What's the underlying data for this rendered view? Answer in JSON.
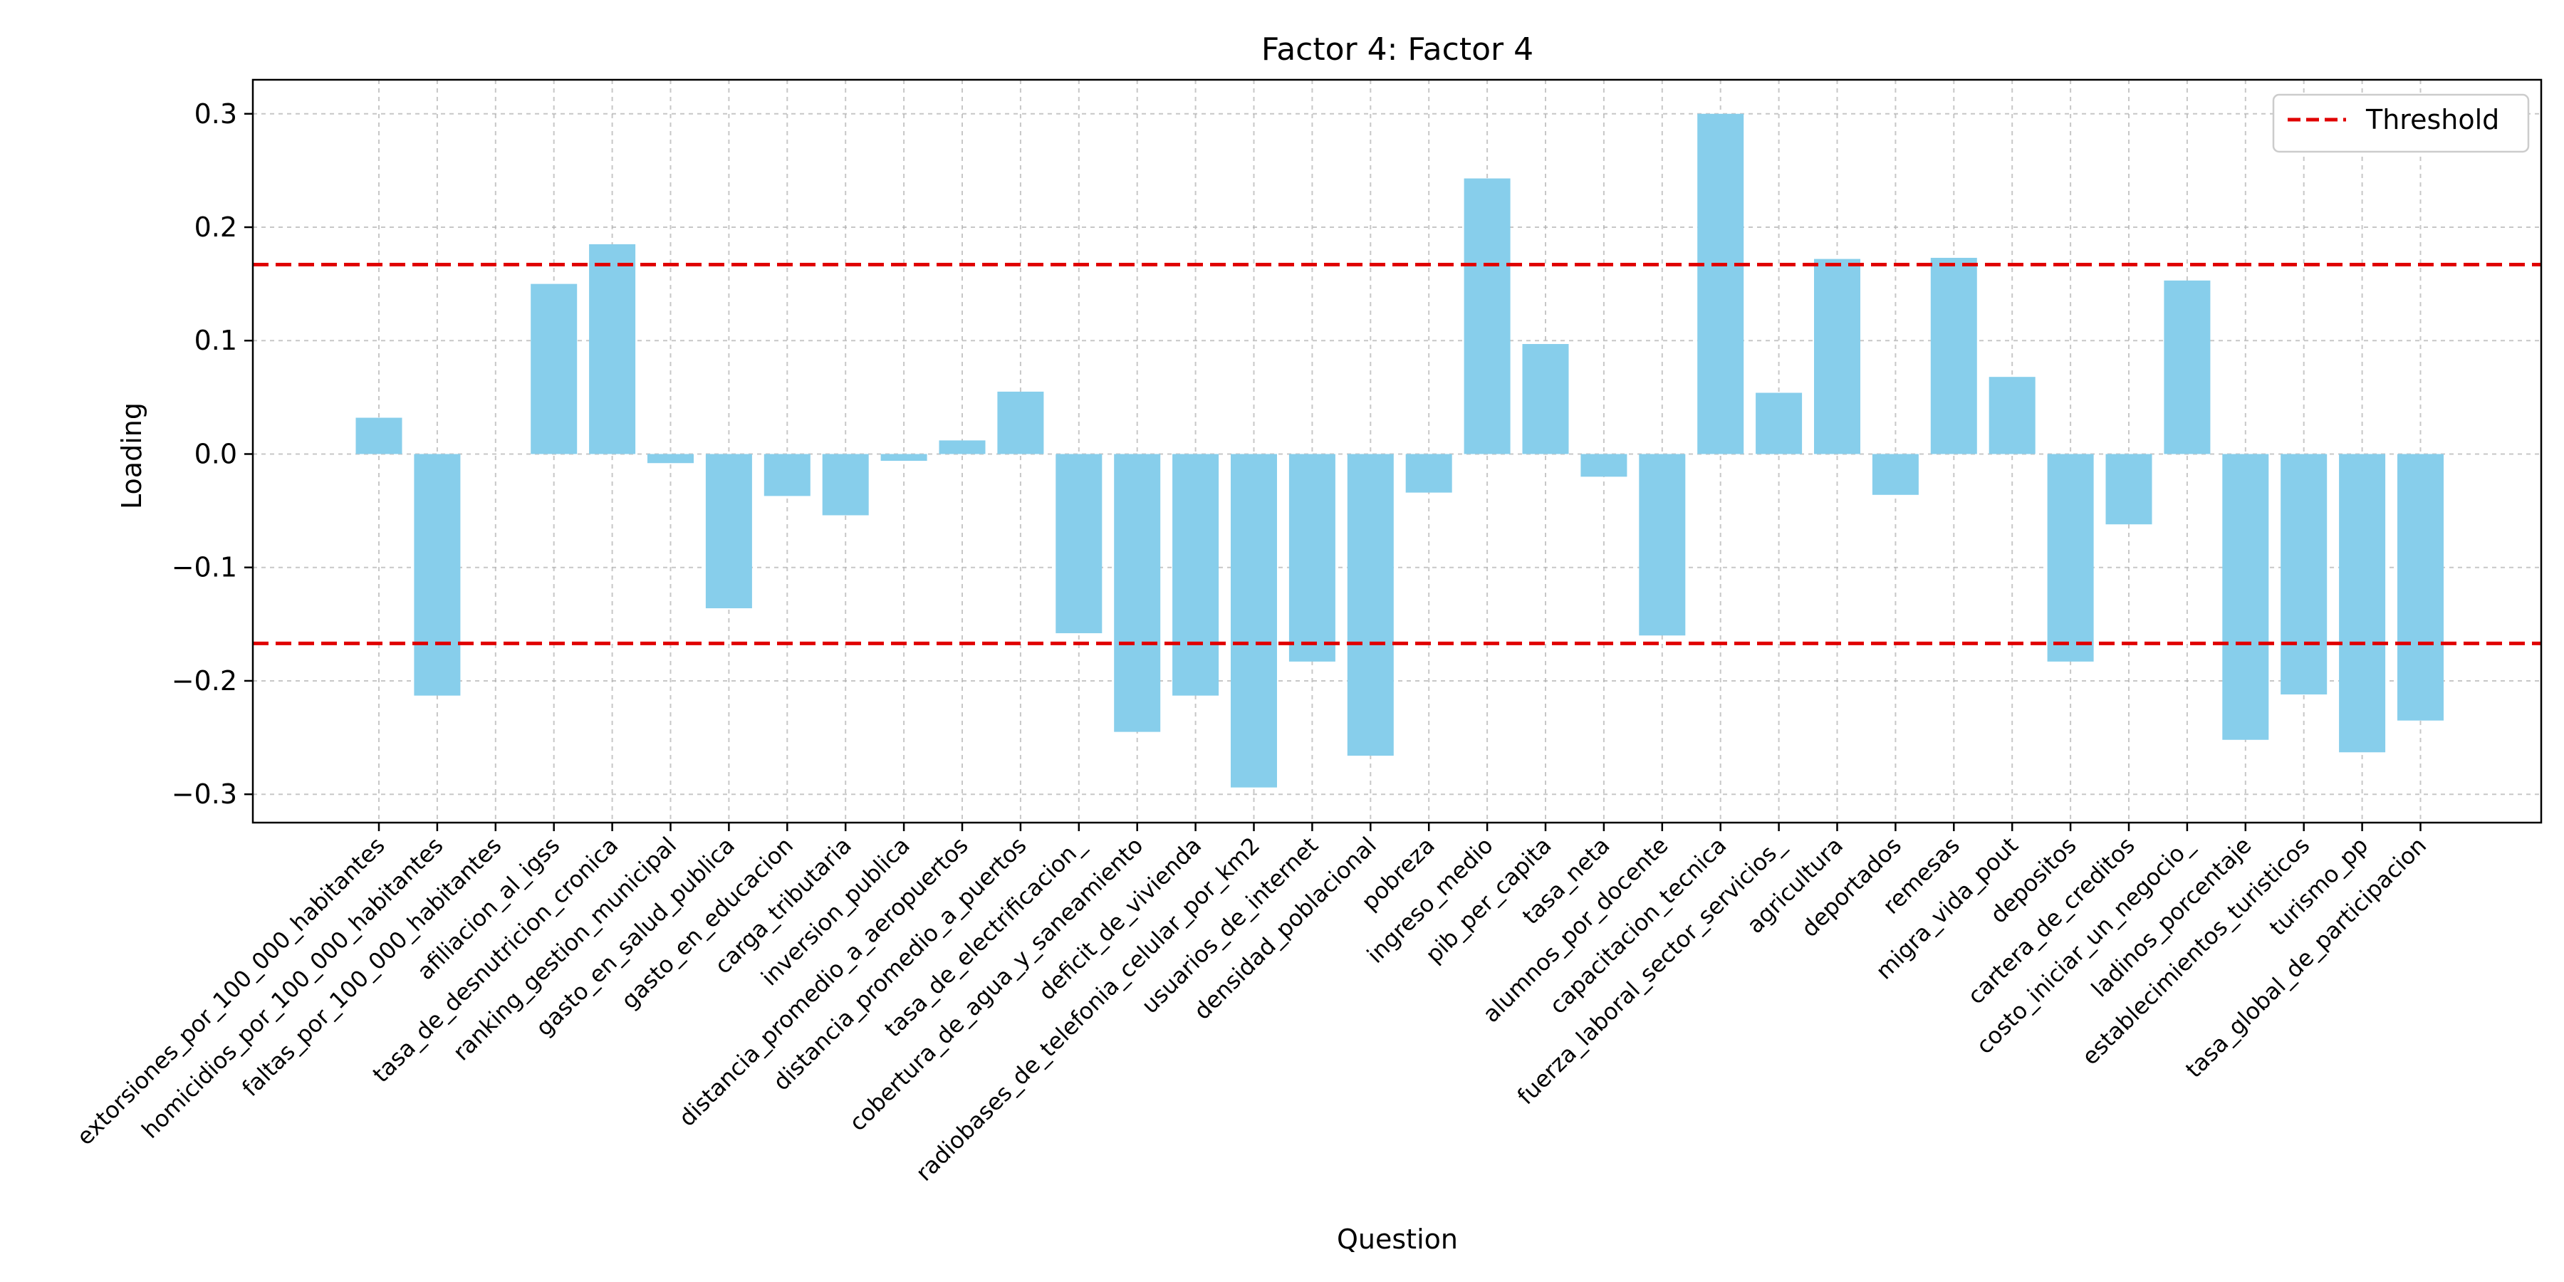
{
  "chart_data": {
    "type": "bar",
    "title": "Factor 4: Factor 4",
    "xlabel": "Question",
    "ylabel": "Loading",
    "ylim": [
      -0.325,
      0.33
    ],
    "yticks": [
      -0.3,
      -0.2,
      -0.1,
      0.0,
      0.1,
      0.2,
      0.3
    ],
    "ytick_labels": [
      "−0.3",
      "−0.2",
      "−0.1",
      "0.0",
      "0.1",
      "0.2",
      "0.3"
    ],
    "grid": true,
    "legend": {
      "position": "top-right",
      "entries": [
        {
          "label": "Threshold",
          "color": "#e00000",
          "style": "dashed"
        }
      ]
    },
    "threshold": 0.167,
    "bar_color": "#87ceeb",
    "categories": [
      "extorsiones_por_100_000_habitantes",
      "homicidios_por_100_000_habitantes",
      "faltas_por_100_000_habitantes",
      "afiliacion_al_igss",
      "tasa_de_desnutricion_cronica",
      "ranking_gestion_municipal",
      "gasto_en_salud_publica",
      "gasto_en_educacion",
      "carga_tributaria",
      "inversion_publica",
      "distancia_promedio_a_aeropuertos",
      "distancia_promedio_a_puertos",
      "tasa_de_electrificacion_",
      "cobertura_de_agua_y_saneamiento",
      "deficit_de_vivienda",
      "radiobases_de_telefonia_celular_por_km2",
      "usuarios_de_internet",
      "densidad_poblacional",
      "pobreza",
      "ingreso_medio",
      "pib_per_capita",
      "tasa_neta",
      "alumnos_por_docente",
      "capacitacion_tecnica",
      "fuerza_laboral_sector_servicios_",
      "agricultura",
      "deportados",
      "remesas",
      "migra_vida_pout",
      "depositos",
      "cartera_de_creditos",
      "costo_iniciar_un_negocio_",
      "ladinos_porcentaje",
      "establecimientos_turisticos",
      "turismo_pp",
      "tasa_global_de_participacion"
    ],
    "values": [
      0.032,
      -0.213,
      0.0,
      0.15,
      0.185,
      -0.008,
      -0.136,
      -0.037,
      -0.054,
      -0.006,
      0.012,
      0.055,
      -0.158,
      -0.245,
      -0.213,
      -0.294,
      -0.183,
      -0.266,
      -0.034,
      0.243,
      0.097,
      -0.02,
      -0.16,
      0.3,
      0.054,
      0.172,
      -0.036,
      0.173,
      0.068,
      -0.183,
      -0.062,
      0.153,
      -0.252,
      -0.212,
      -0.263,
      -0.235
    ]
  }
}
